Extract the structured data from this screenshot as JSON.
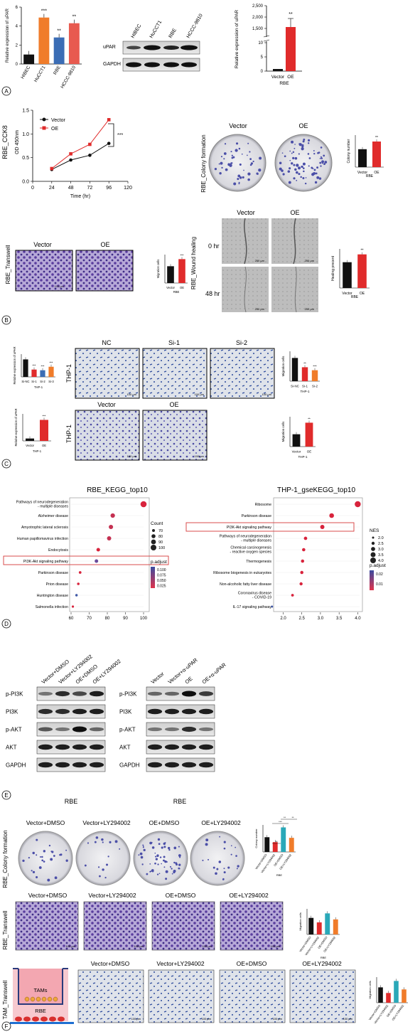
{
  "panel_letters": [
    "A",
    "B",
    "C",
    "D",
    "E",
    "F"
  ],
  "panelA": {
    "bar1": {
      "ylabel": "Relative expression of uPAR",
      "categories": [
        "HIBEC",
        "HuCCT1",
        "RBE",
        "HCCC-9810"
      ],
      "values": [
        1.0,
        4.9,
        2.8,
        4.3
      ],
      "colors": [
        "#111111",
        "#f07c2a",
        "#3b6db5",
        "#e85a4f"
      ],
      "sig": [
        "",
        "***",
        "**",
        "**"
      ],
      "ylim": [
        0,
        6
      ],
      "yticks": [
        "0",
        "2",
        "4",
        "6"
      ]
    },
    "blot": {
      "lanes": [
        "HIBEC",
        "HuCCT1",
        "RBE",
        "HCCC-9810"
      ],
      "rows": [
        "uPAR",
        "GAPDH"
      ]
    },
    "bar2": {
      "ylabel": "Relative expression of uPAR",
      "categories": [
        "Vector",
        "OE"
      ],
      "values": [
        1,
        1580
      ],
      "sig": [
        "",
        "**"
      ],
      "yticks_top": [
        "1,500",
        "2,000",
        "2,500"
      ],
      "yticks_bottom": [
        "0",
        "5",
        "10"
      ],
      "xlabel": "RBE"
    }
  },
  "panelB": {
    "line": {
      "title": "RBE_CCK8",
      "ylabel": "OD 450nm",
      "xlabel": "Time (hr)",
      "x": [
        24,
        48,
        72,
        96
      ],
      "series": [
        {
          "name": "Vector",
          "values": [
            0.25,
            0.45,
            0.55,
            0.8
          ],
          "color": "#111111"
        },
        {
          "name": "OE",
          "values": [
            0.27,
            0.58,
            0.78,
            1.3
          ],
          "color": "#e02b2b"
        }
      ],
      "xticks": [
        "0",
        "24",
        "48",
        "72",
        "96",
        "120"
      ],
      "yticks": [
        "0.0",
        "0.5",
        "1.0",
        "1.5"
      ],
      "sig": "***"
    },
    "colony": {
      "side_label": "RBE_Colony formation",
      "labels": [
        "Vector",
        "OE"
      ],
      "bar": {
        "ylabel": "Colony number",
        "xlabel": "RBE",
        "categories": [
          "Vector",
          "OE"
        ],
        "values": [
          140,
          200
        ],
        "sig": "**"
      }
    },
    "transwell": {
      "side_label": "RBE_Transwell",
      "labels": [
        "Vector",
        "OE"
      ],
      "scale": "100 μm",
      "bar": {
        "ylabel": "Migration cells",
        "xlabel": "RBE",
        "categories": [
          "Vector",
          "OE"
        ],
        "values": [
          130,
          185
        ],
        "sig": "***"
      }
    },
    "wound": {
      "side_label": "RBE_Wound healing",
      "labels": [
        "Vector",
        "OE"
      ],
      "rows": [
        "0 hr",
        "48 hr"
      ],
      "scale": "250 μm",
      "bar": {
        "ylabel": "Healing precent",
        "xlabel": "RBE",
        "categories": [
          "Vector",
          "OE"
        ],
        "values": [
          0.33,
          0.43
        ],
        "sig": "**"
      }
    }
  },
  "panelC": {
    "bar_si": {
      "ylabel": "Relative expression of uPAR",
      "xlabel": "THP-1",
      "categories": [
        "Si-NC",
        "Si-1",
        "Si-2",
        "Si-3"
      ],
      "values": [
        1.0,
        0.42,
        0.38,
        0.58
      ],
      "colors": [
        "#111111",
        "#e02b2b",
        "#3b6db5",
        "#f07c2a"
      ],
      "sig": [
        "",
        "***",
        "***",
        "***"
      ]
    },
    "bar_oe": {
      "ylabel": "Relative expression of uPAR",
      "xlabel": "THP-1",
      "categories": [
        "Vector",
        "OE"
      ],
      "values": [
        8,
        70
      ],
      "sig": [
        "",
        "***"
      ]
    },
    "side_label": "THP-1",
    "images_top": [
      "NC",
      "Si-1",
      "Si-2"
    ],
    "images_bottom": [
      "Vector",
      "OE"
    ],
    "scale": "100 μm",
    "bar_mig_si": {
      "ylabel": "Migration cells",
      "xlabel": "THP-1",
      "categories": [
        "Si-NC",
        "Si-1",
        "Si-2"
      ],
      "values": [
        70,
        42,
        33
      ],
      "sig": [
        "",
        "**",
        "***"
      ]
    },
    "bar_mig_oe": {
      "ylabel": "Migration cells",
      "xlabel": "THP-1",
      "categories": [
        "Vector",
        "OE"
      ],
      "values": [
        62,
        120
      ],
      "sig": [
        "",
        "**"
      ]
    }
  },
  "panelD": {
    "kegg": {
      "title": "RBE_KEGG_top10",
      "terms": [
        "Pathways of neurodegeneration - multiple diseases",
        "Alzheimer disease",
        "Amyotrophic lateral sclerosis",
        "Human papillomavirus infection",
        "Endocytosis",
        "PI3K-Akt signaling pathway",
        "Parkinson disease",
        "Prion disease",
        "Huntington disease",
        "Salmonella infection"
      ],
      "x": [
        100,
        83,
        82,
        81,
        75,
        74,
        65,
        64,
        63,
        61
      ],
      "xticks": [
        "60",
        "70",
        "80",
        "90",
        "100"
      ],
      "legend_count": {
        "title": "Count",
        "values": [
          "70",
          "80",
          "90",
          "100"
        ]
      },
      "legend_color": {
        "title": "p.adjust",
        "values": [
          "0.100",
          "0.075",
          "0.050",
          "0.025"
        ]
      }
    },
    "gsea": {
      "title": "THP-1_gseKEGG_top10",
      "terms": [
        "Ribosome",
        "Parkinson disease",
        "PI3K-Akt signaling pathway",
        "Pathways of neurodegeneration - multiple diseases",
        "Chemical carcinogenesis - reactive oxygen species",
        "Thermogenesis",
        "Ribosome biogenesis in eukaryotes",
        "Non-alcoholic fatty liver disease",
        "Coronavirus disease - COVID-19",
        "IL-17 signaling pathway"
      ],
      "x": [
        4.0,
        3.3,
        3.05,
        2.6,
        2.55,
        2.52,
        2.5,
        2.48,
        2.25,
        1.7
      ],
      "xticks": [
        "2.0",
        "2.5",
        "3.0",
        "3.5",
        "4.0"
      ],
      "legend_nes": {
        "title": "NES",
        "values": [
          "2.0",
          "2.5",
          "3.0",
          "3.5",
          "4.0"
        ]
      },
      "legend_color": {
        "title": "p.adjust",
        "values": [
          "0.02",
          "0.01"
        ]
      }
    }
  },
  "panelE": {
    "left": {
      "lanes": [
        "Vector+DMSO",
        "Vector+LY294002",
        "OE+DMSO",
        "OE+LY294002"
      ],
      "rows": [
        "p-PI3K",
        "PI3K",
        "p-AKT",
        "AKT",
        "GAPDH"
      ],
      "xlabel": "RBE"
    },
    "right": {
      "lanes": [
        "Vector",
        "Vector+α-uPAR",
        "OE",
        "OE+α-uPAR"
      ],
      "rows": [
        "p-PI3K",
        "PI3K",
        "p-AKT",
        "AKT",
        "GAPDH"
      ],
      "xlabel": "RBE"
    }
  },
  "panelF": {
    "groups": [
      "Vector+DMSO",
      "Vector+LY294002",
      "OE+DMSO",
      "OE+LY294002"
    ],
    "colony_label": "RBE_Colony formation",
    "transwell_label": "RBE_Transwell",
    "tam_label": "TAM_Transwell",
    "tam_diagram": {
      "top": "TAMs",
      "bottom": "RBE"
    },
    "scale": "100 μm",
    "bar_colony": {
      "ylabel": "Colony number",
      "xlabel": "RBE",
      "values": [
        120,
        80,
        200,
        115
      ],
      "sig": [
        "**",
        "***",
        "**"
      ]
    },
    "bar_transwell": {
      "ylabel": "Migration cells",
      "xlabel": "RBE",
      "values": [
        110,
        80,
        140,
        100
      ],
      "sig": [
        "***",
        "**",
        "**"
      ]
    },
    "bar_tam": {
      "ylabel": "Migration cells",
      "xlabel": "",
      "values": [
        60,
        38,
        85,
        52
      ],
      "sig": [
        "**",
        "**",
        "***"
      ]
    },
    "colors": [
      "#111111",
      "#e02b2b",
      "#2aa8b8",
      "#f07c2a"
    ]
  }
}
